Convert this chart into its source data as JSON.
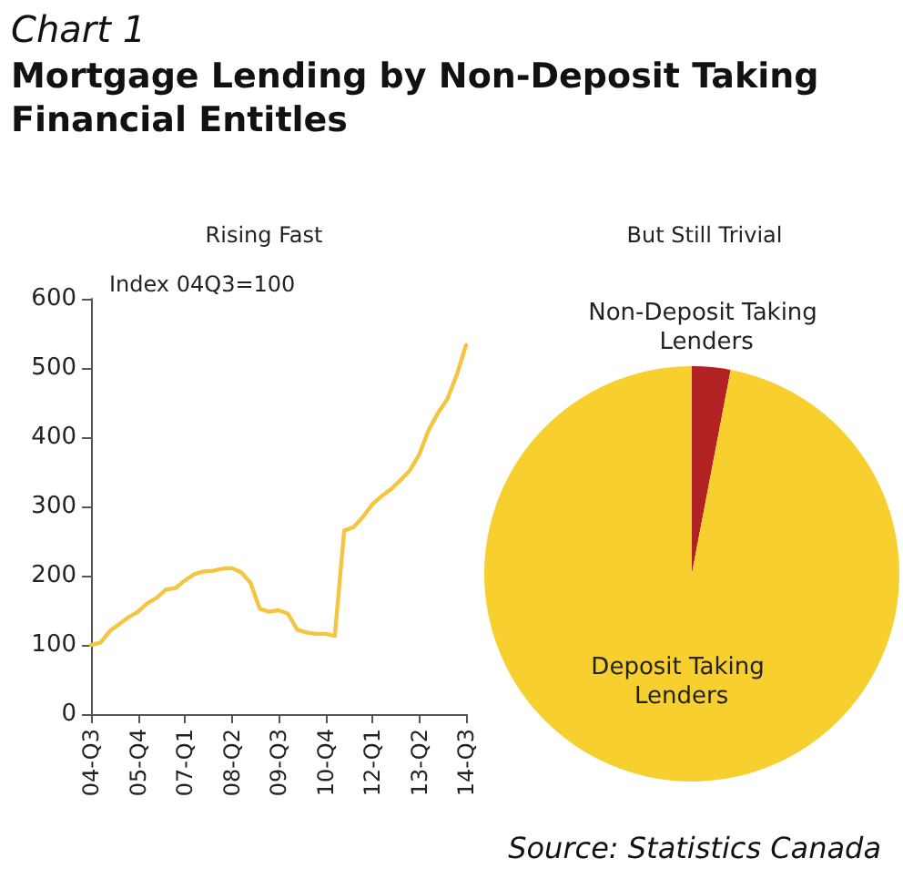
{
  "chart_data": [
    {
      "type": "line",
      "title": "Mortgage Lending by Non-Deposit Taking Financial Entitles",
      "subtitle": "Rising Fast",
      "annotations": [
        "Chart 1",
        "Index 04Q3=100"
      ],
      "categories": [
        "04-Q3",
        null,
        null,
        null,
        null,
        "05-Q4",
        null,
        null,
        null,
        null,
        "07-Q1",
        null,
        null,
        null,
        null,
        "08-Q2",
        null,
        null,
        null,
        null,
        "09-Q3",
        null,
        null,
        null,
        null,
        "10-Q4",
        null,
        null,
        null,
        null,
        "12-Q1",
        null,
        null,
        null,
        null,
        "13-Q2",
        null,
        null,
        null,
        null,
        "14-Q3"
      ],
      "series": [
        {
          "color": "#f5c542",
          "values": [
            100,
            103,
            120,
            130,
            140,
            148,
            160,
            168,
            180,
            182,
            193,
            202,
            206,
            207,
            210,
            211,
            205,
            190,
            152,
            148,
            150,
            145,
            122,
            118,
            116,
            116,
            113,
            265,
            270,
            285,
            303,
            315,
            325,
            338,
            352,
            375,
            410,
            435,
            455,
            490,
            533
          ]
        }
      ],
      "ylim": [
        0,
        600
      ],
      "yticks": [
        0,
        100,
        200,
        300,
        400,
        500,
        600
      ],
      "grid": false,
      "legend": false,
      "marker": "none",
      "line_style": "solid"
    },
    {
      "type": "pie",
      "subtitle": "But Still Trivial",
      "annotations": [
        "Source: Statistics Canada"
      ],
      "categories": [
        "Non-Deposit Taking Lenders",
        "Deposit Taking Lenders"
      ],
      "values": [
        3,
        97
      ],
      "colors": [
        "#b22222",
        "#f7cf2e"
      ],
      "legend": false
    }
  ]
}
